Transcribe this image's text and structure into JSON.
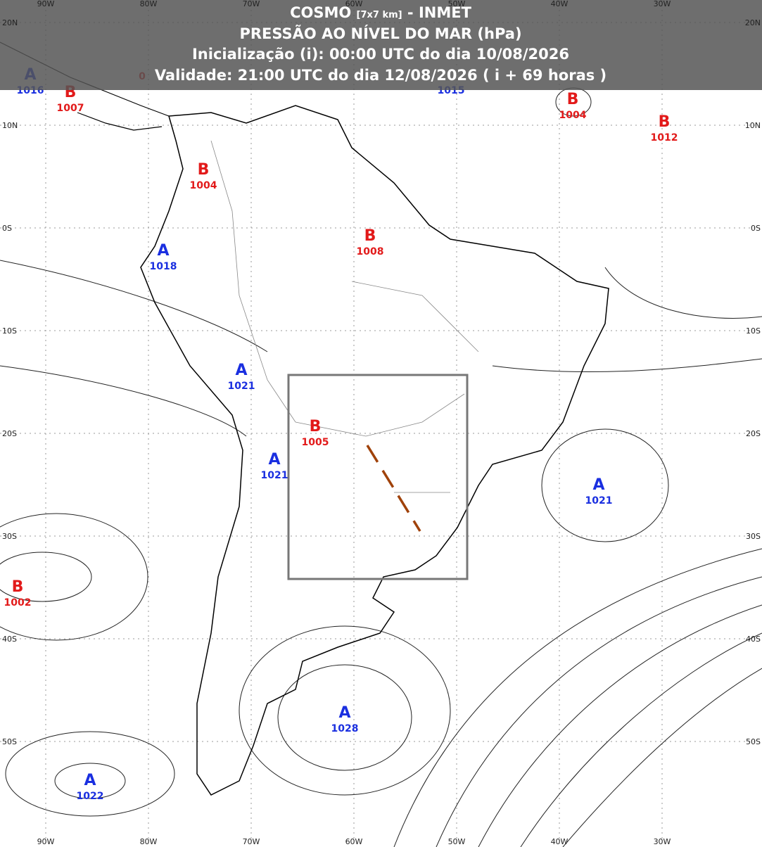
{
  "header": {
    "title_main": "COSMO",
    "title_small": "[7x7 km]",
    "title_rest": "- INMET",
    "line2": "PRESSÃO AO NÍVEL DO MAR (hPa)",
    "line3": "Inicialização (i): 00:00 UTC do dia 10/08/2026",
    "line4": "Validade: 21:00 UTC do dia 12/08/2026 ( i + 69 horas )"
  },
  "lon_labels": [
    "90W",
    "80W",
    "70W",
    "60W",
    "50W",
    "40W",
    "30W"
  ],
  "lat_labels": [
    "20N",
    "10N",
    "0S",
    "10S",
    "20S",
    "30S",
    "40S",
    "50S"
  ],
  "centers": [
    {
      "label": "A",
      "value": 1016
    },
    {
      "label": "B",
      "value": 1007
    },
    {
      "label": "0"
    },
    {
      "value": 1015
    },
    {
      "label": "B",
      "value": 1004
    },
    {
      "label": "B",
      "value": 1012
    },
    {
      "label": "B",
      "value": 1004
    },
    {
      "label": "B",
      "value": 1008
    },
    {
      "label": "A",
      "value": 1018
    },
    {
      "label": "A",
      "value": 1021
    },
    {
      "label": "B",
      "value": 1005
    },
    {
      "label": "A",
      "value": 1021
    },
    {
      "label": "A",
      "value": 1021
    },
    {
      "label": "B",
      "value": 1002
    },
    {
      "label": "A",
      "value": 1028
    },
    {
      "label": "A",
      "value": 1022
    }
  ]
}
